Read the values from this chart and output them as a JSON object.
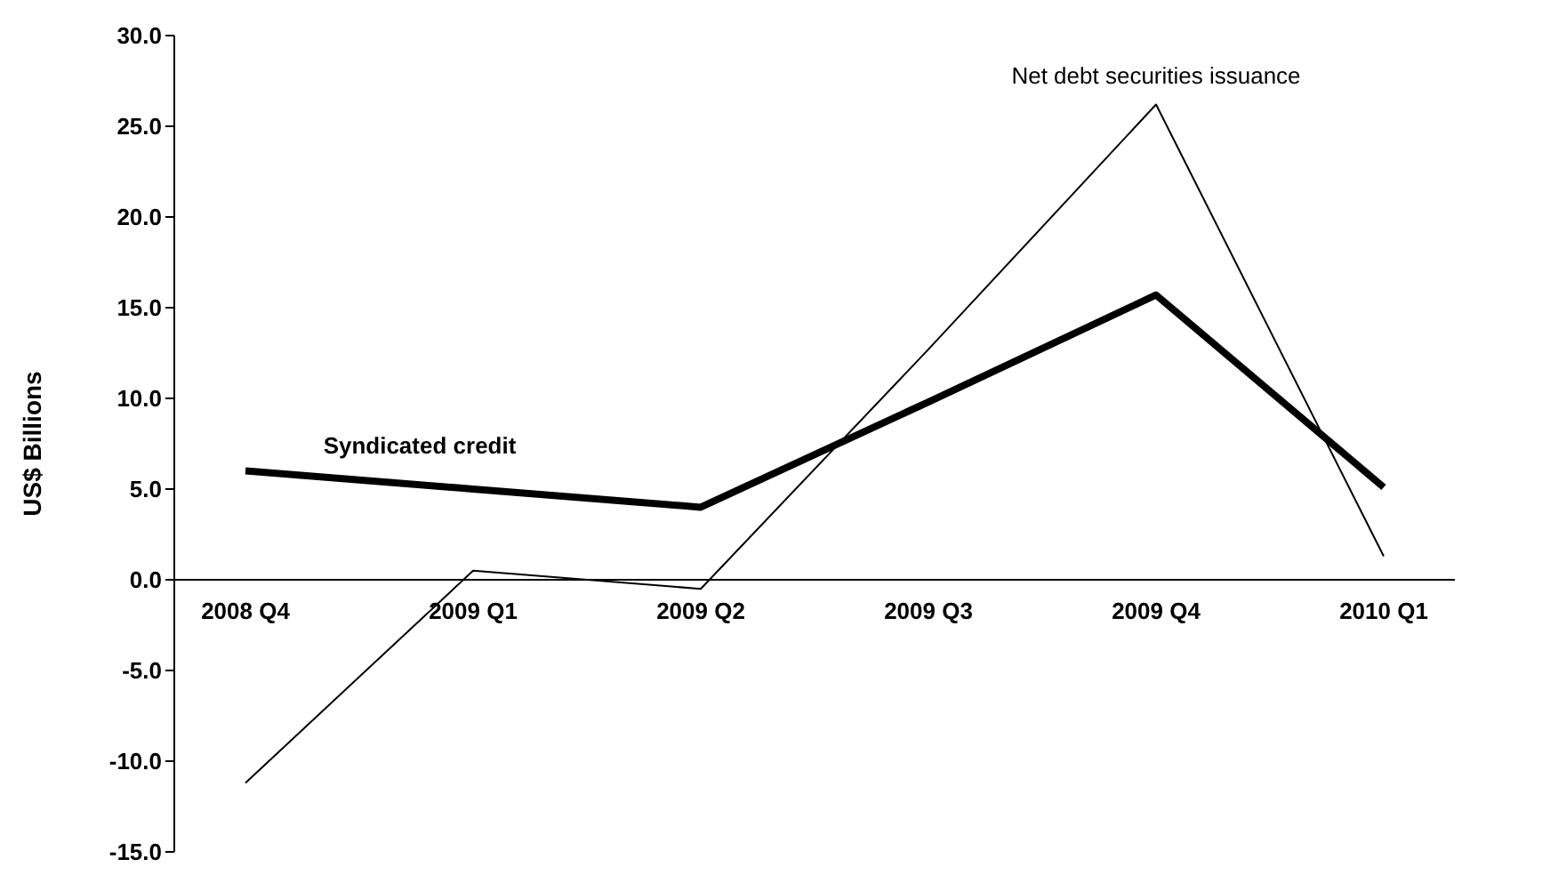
{
  "chart_data": {
    "type": "line",
    "ylabel": "US$ Billions",
    "categories": [
      "2008 Q4",
      "2009 Q1",
      "2009 Q2",
      "2009 Q3",
      "2009 Q4",
      "2010 Q1"
    ],
    "series": [
      {
        "name": "Syndicated credit",
        "color": "#000000",
        "values": [
          6.0,
          5.0,
          4.0,
          9.8,
          15.7,
          5.1
        ]
      },
      {
        "name": "Net debt securities issuance",
        "color": "#000000",
        "values": [
          -11.2,
          0.5,
          -0.5,
          12.7,
          26.2,
          1.3
        ]
      }
    ],
    "ylim": [
      -15,
      30
    ],
    "yticks": [
      {
        "value": -15,
        "label": "-15.0"
      },
      {
        "value": -10,
        "label": "-10.0"
      },
      {
        "value": -5,
        "label": "-5.0"
      },
      {
        "value": 0,
        "label": "0.0"
      },
      {
        "value": 5,
        "label": "5.0"
      },
      {
        "value": 10,
        "label": "10.0"
      },
      {
        "value": 15,
        "label": "15.0"
      },
      {
        "value": 20,
        "label": "20.0"
      },
      {
        "value": 25,
        "label": "25.0"
      },
      {
        "value": 30,
        "label": "30.0"
      }
    ],
    "grid": false,
    "legend": false,
    "marker": "none",
    "line_style": "solid"
  }
}
